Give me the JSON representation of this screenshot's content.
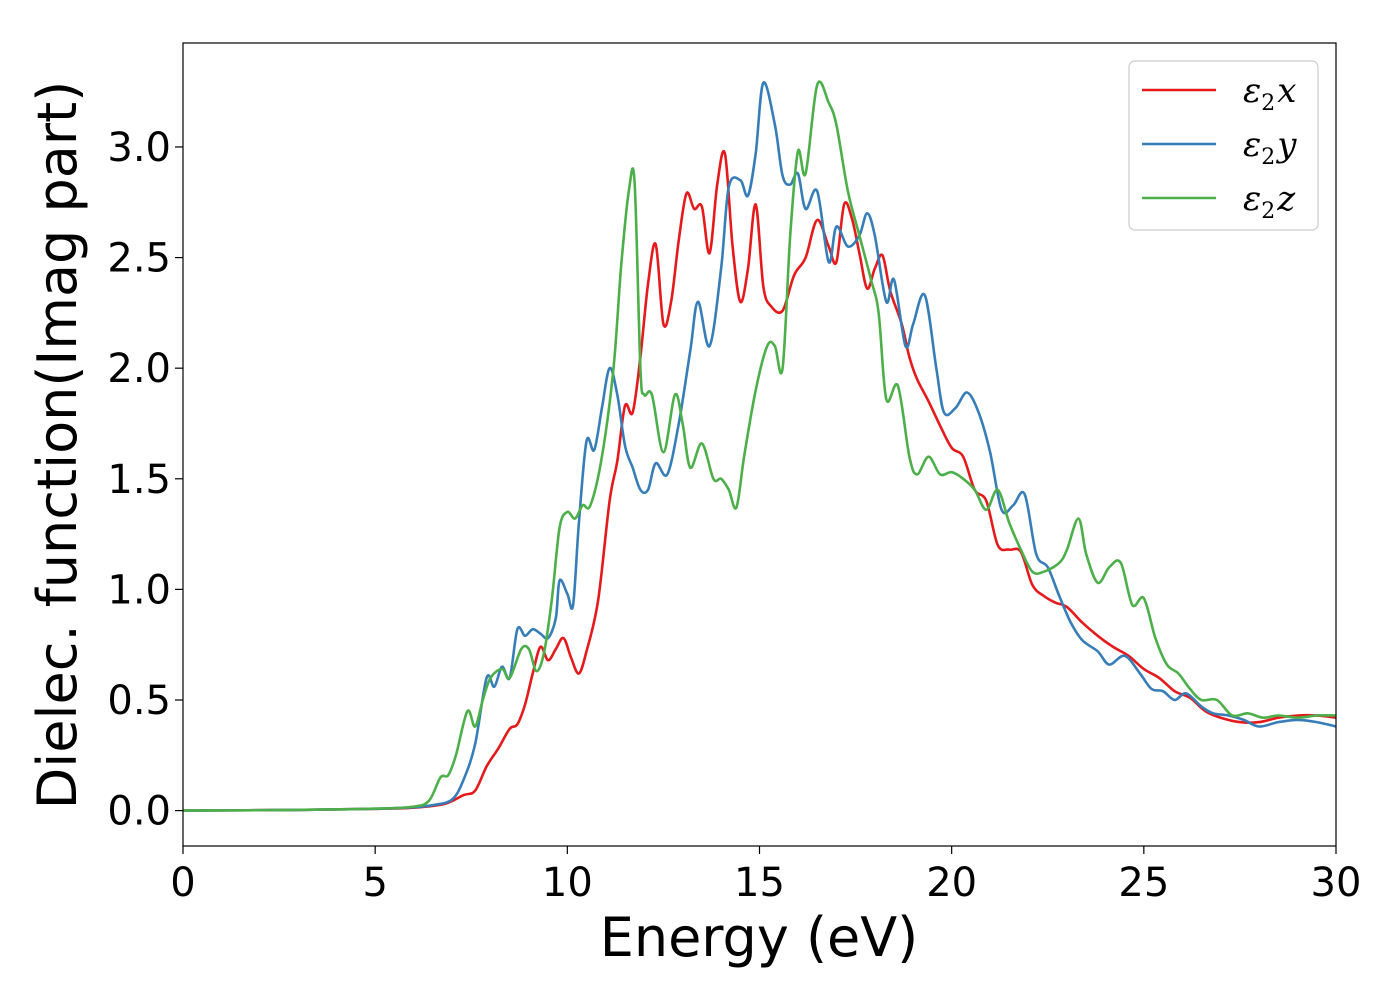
{
  "chart_data": {
    "type": "line",
    "xlabel": "Energy (eV)",
    "ylabel": "Dielec. function(Imag part)",
    "xlim": [
      0,
      30
    ],
    "ylim": [
      -0.16,
      3.47
    ],
    "xticks": [
      0,
      5,
      10,
      15,
      20,
      25,
      30
    ],
    "yticks": [
      "0.0",
      "0.5",
      "1.0",
      "1.5",
      "2.0",
      "2.5",
      "3.0"
    ],
    "grid": false,
    "legend_position": "top-right",
    "legend_entries": [
      {
        "base": "ε",
        "sub": "2",
        "var": "x",
        "color": "#e41a1c"
      },
      {
        "base": "ε",
        "sub": "2",
        "var": "y",
        "color": "#377eb8"
      },
      {
        "base": "ε",
        "sub": "2",
        "var": "z",
        "color": "#4daf4a"
      }
    ],
    "series": [
      {
        "color": "#e41a1c",
        "points": [
          [
            0,
            0
          ],
          [
            3,
            0.003
          ],
          [
            5,
            0.008
          ],
          [
            6,
            0.013
          ],
          [
            6.8,
            0.03
          ],
          [
            7.3,
            0.07
          ],
          [
            7.6,
            0.09
          ],
          [
            7.9,
            0.2
          ],
          [
            8.2,
            0.28
          ],
          [
            8.5,
            0.37
          ],
          [
            8.7,
            0.39
          ],
          [
            8.9,
            0.48
          ],
          [
            9.1,
            0.62
          ],
          [
            9.3,
            0.74
          ],
          [
            9.5,
            0.68
          ],
          [
            9.7,
            0.73
          ],
          [
            9.9,
            0.78
          ],
          [
            10.1,
            0.69
          ],
          [
            10.3,
            0.62
          ],
          [
            10.5,
            0.72
          ],
          [
            10.8,
            0.95
          ],
          [
            11.1,
            1.4
          ],
          [
            11.3,
            1.58
          ],
          [
            11.5,
            1.83
          ],
          [
            11.7,
            1.8
          ],
          [
            11.9,
            2.05
          ],
          [
            12.1,
            2.38
          ],
          [
            12.3,
            2.56
          ],
          [
            12.5,
            2.2
          ],
          [
            12.7,
            2.3
          ],
          [
            12.9,
            2.58
          ],
          [
            13.1,
            2.79
          ],
          [
            13.3,
            2.72
          ],
          [
            13.5,
            2.73
          ],
          [
            13.7,
            2.52
          ],
          [
            13.9,
            2.83
          ],
          [
            14.1,
            2.97
          ],
          [
            14.3,
            2.55
          ],
          [
            14.5,
            2.3
          ],
          [
            14.7,
            2.45
          ],
          [
            14.9,
            2.74
          ],
          [
            15.1,
            2.37
          ],
          [
            15.3,
            2.28
          ],
          [
            15.6,
            2.26
          ],
          [
            15.9,
            2.42
          ],
          [
            16.2,
            2.5
          ],
          [
            16.5,
            2.67
          ],
          [
            16.8,
            2.55
          ],
          [
            17.0,
            2.48
          ],
          [
            17.2,
            2.74
          ],
          [
            17.4,
            2.68
          ],
          [
            17.6,
            2.52
          ],
          [
            17.8,
            2.36
          ],
          [
            18.0,
            2.45
          ],
          [
            18.2,
            2.51
          ],
          [
            18.4,
            2.35
          ],
          [
            18.7,
            2.2
          ],
          [
            18.9,
            2.05
          ],
          [
            19.1,
            1.95
          ],
          [
            19.4,
            1.85
          ],
          [
            19.7,
            1.74
          ],
          [
            20.0,
            1.64
          ],
          [
            20.3,
            1.6
          ],
          [
            20.6,
            1.45
          ],
          [
            20.9,
            1.4
          ],
          [
            21.2,
            1.2
          ],
          [
            21.5,
            1.18
          ],
          [
            21.8,
            1.17
          ],
          [
            22.1,
            1.02
          ],
          [
            22.4,
            0.97
          ],
          [
            22.7,
            0.94
          ],
          [
            23.0,
            0.92
          ],
          [
            23.4,
            0.85
          ],
          [
            23.8,
            0.79
          ],
          [
            24.2,
            0.74
          ],
          [
            24.6,
            0.7
          ],
          [
            25.0,
            0.64
          ],
          [
            25.4,
            0.6
          ],
          [
            25.8,
            0.54
          ],
          [
            26.2,
            0.51
          ],
          [
            26.6,
            0.45
          ],
          [
            27.0,
            0.42
          ],
          [
            27.5,
            0.4
          ],
          [
            28.0,
            0.4
          ],
          [
            28.5,
            0.42
          ],
          [
            29.0,
            0.43
          ],
          [
            29.5,
            0.43
          ],
          [
            30,
            0.42
          ]
        ]
      },
      {
        "color": "#377eb8",
        "points": [
          [
            0,
            0
          ],
          [
            3,
            0.003
          ],
          [
            5,
            0.008
          ],
          [
            6,
            0.015
          ],
          [
            6.5,
            0.025
          ],
          [
            7.0,
            0.05
          ],
          [
            7.3,
            0.14
          ],
          [
            7.6,
            0.3
          ],
          [
            7.9,
            0.6
          ],
          [
            8.1,
            0.56
          ],
          [
            8.3,
            0.65
          ],
          [
            8.5,
            0.6
          ],
          [
            8.7,
            0.82
          ],
          [
            8.9,
            0.79
          ],
          [
            9.1,
            0.82
          ],
          [
            9.3,
            0.8
          ],
          [
            9.5,
            0.78
          ],
          [
            9.7,
            0.87
          ],
          [
            9.8,
            1.04
          ],
          [
            10.0,
            0.98
          ],
          [
            10.15,
            0.93
          ],
          [
            10.3,
            1.3
          ],
          [
            10.5,
            1.67
          ],
          [
            10.7,
            1.63
          ],
          [
            10.9,
            1.82
          ],
          [
            11.1,
            2.0
          ],
          [
            11.3,
            1.88
          ],
          [
            11.5,
            1.65
          ],
          [
            11.7,
            1.55
          ],
          [
            11.9,
            1.45
          ],
          [
            12.1,
            1.45
          ],
          [
            12.3,
            1.57
          ],
          [
            12.6,
            1.52
          ],
          [
            12.9,
            1.75
          ],
          [
            13.2,
            2.08
          ],
          [
            13.4,
            2.3
          ],
          [
            13.7,
            2.1
          ],
          [
            14.0,
            2.45
          ],
          [
            14.2,
            2.82
          ],
          [
            14.5,
            2.85
          ],
          [
            14.7,
            2.78
          ],
          [
            14.9,
            2.97
          ],
          [
            15.1,
            3.29
          ],
          [
            15.4,
            3.1
          ],
          [
            15.6,
            2.87
          ],
          [
            15.8,
            2.83
          ],
          [
            16.0,
            2.88
          ],
          [
            16.2,
            2.72
          ],
          [
            16.5,
            2.8
          ],
          [
            16.8,
            2.48
          ],
          [
            17.0,
            2.64
          ],
          [
            17.3,
            2.55
          ],
          [
            17.6,
            2.6
          ],
          [
            17.8,
            2.7
          ],
          [
            18.0,
            2.6
          ],
          [
            18.3,
            2.3
          ],
          [
            18.5,
            2.4
          ],
          [
            18.8,
            2.1
          ],
          [
            19.0,
            2.2
          ],
          [
            19.3,
            2.33
          ],
          [
            19.6,
            2.0
          ],
          [
            19.8,
            1.8
          ],
          [
            20.1,
            1.82
          ],
          [
            20.4,
            1.89
          ],
          [
            20.7,
            1.8
          ],
          [
            21.0,
            1.62
          ],
          [
            21.3,
            1.36
          ],
          [
            21.6,
            1.38
          ],
          [
            21.9,
            1.43
          ],
          [
            22.2,
            1.16
          ],
          [
            22.5,
            1.1
          ],
          [
            22.8,
            0.97
          ],
          [
            23.1,
            0.85
          ],
          [
            23.4,
            0.77
          ],
          [
            23.8,
            0.72
          ],
          [
            24.1,
            0.66
          ],
          [
            24.5,
            0.7
          ],
          [
            24.9,
            0.62
          ],
          [
            25.2,
            0.55
          ],
          [
            25.5,
            0.54
          ],
          [
            25.8,
            0.5
          ],
          [
            26.1,
            0.53
          ],
          [
            26.5,
            0.47
          ],
          [
            26.8,
            0.44
          ],
          [
            27.2,
            0.43
          ],
          [
            27.6,
            0.41
          ],
          [
            28.0,
            0.38
          ],
          [
            28.5,
            0.4
          ],
          [
            29.0,
            0.41
          ],
          [
            29.5,
            0.4
          ],
          [
            30,
            0.38
          ]
        ]
      },
      {
        "color": "#4daf4a",
        "points": [
          [
            0,
            0
          ],
          [
            3,
            0.003
          ],
          [
            5,
            0.009
          ],
          [
            6,
            0.018
          ],
          [
            6.4,
            0.045
          ],
          [
            6.7,
            0.15
          ],
          [
            6.9,
            0.16
          ],
          [
            7.1,
            0.25
          ],
          [
            7.4,
            0.45
          ],
          [
            7.6,
            0.38
          ],
          [
            7.8,
            0.5
          ],
          [
            8.0,
            0.6
          ],
          [
            8.3,
            0.64
          ],
          [
            8.5,
            0.6
          ],
          [
            8.8,
            0.73
          ],
          [
            9.0,
            0.73
          ],
          [
            9.2,
            0.63
          ],
          [
            9.4,
            0.72
          ],
          [
            9.6,
            0.96
          ],
          [
            9.8,
            1.28
          ],
          [
            10.0,
            1.35
          ],
          [
            10.2,
            1.32
          ],
          [
            10.4,
            1.38
          ],
          [
            10.6,
            1.38
          ],
          [
            10.9,
            1.6
          ],
          [
            11.2,
            2.0
          ],
          [
            11.4,
            2.46
          ],
          [
            11.6,
            2.8
          ],
          [
            11.75,
            2.84
          ],
          [
            11.9,
            2.0
          ],
          [
            12.0,
            1.88
          ],
          [
            12.2,
            1.88
          ],
          [
            12.5,
            1.62
          ],
          [
            12.8,
            1.88
          ],
          [
            13.0,
            1.75
          ],
          [
            13.2,
            1.55
          ],
          [
            13.5,
            1.66
          ],
          [
            13.8,
            1.5
          ],
          [
            14.0,
            1.5
          ],
          [
            14.2,
            1.45
          ],
          [
            14.4,
            1.37
          ],
          [
            14.6,
            1.6
          ],
          [
            14.9,
            1.9
          ],
          [
            15.2,
            2.1
          ],
          [
            15.4,
            2.1
          ],
          [
            15.6,
            2.0
          ],
          [
            15.8,
            2.6
          ],
          [
            16.0,
            2.98
          ],
          [
            16.2,
            2.88
          ],
          [
            16.5,
            3.28
          ],
          [
            16.8,
            3.2
          ],
          [
            17.0,
            3.1
          ],
          [
            17.3,
            2.8
          ],
          [
            17.6,
            2.6
          ],
          [
            17.9,
            2.4
          ],
          [
            18.1,
            2.25
          ],
          [
            18.3,
            1.86
          ],
          [
            18.6,
            1.92
          ],
          [
            18.9,
            1.6
          ],
          [
            19.1,
            1.52
          ],
          [
            19.4,
            1.6
          ],
          [
            19.7,
            1.52
          ],
          [
            20.0,
            1.53
          ],
          [
            20.3,
            1.5
          ],
          [
            20.6,
            1.45
          ],
          [
            20.9,
            1.36
          ],
          [
            21.2,
            1.45
          ],
          [
            21.5,
            1.3
          ],
          [
            21.8,
            1.18
          ],
          [
            22.1,
            1.08
          ],
          [
            22.4,
            1.08
          ],
          [
            22.8,
            1.12
          ],
          [
            23.0,
            1.18
          ],
          [
            23.3,
            1.32
          ],
          [
            23.5,
            1.16
          ],
          [
            23.8,
            1.03
          ],
          [
            24.1,
            1.1
          ],
          [
            24.4,
            1.12
          ],
          [
            24.7,
            0.93
          ],
          [
            25.0,
            0.96
          ],
          [
            25.3,
            0.78
          ],
          [
            25.6,
            0.66
          ],
          [
            25.9,
            0.62
          ],
          [
            26.2,
            0.55
          ],
          [
            26.5,
            0.5
          ],
          [
            26.9,
            0.5
          ],
          [
            27.3,
            0.43
          ],
          [
            27.7,
            0.44
          ],
          [
            28.1,
            0.42
          ],
          [
            28.5,
            0.43
          ],
          [
            29.0,
            0.42
          ],
          [
            29.5,
            0.43
          ],
          [
            30,
            0.43
          ]
        ]
      }
    ]
  }
}
